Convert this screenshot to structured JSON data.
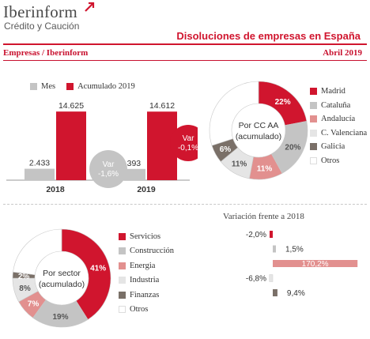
{
  "brand": {
    "name": "Iberinform",
    "tagline": "Crédito y Caución"
  },
  "header": {
    "title": "Disoluciones de empresas en España",
    "section": "Empresas / Iberinform",
    "period": "Abril 2019"
  },
  "colors": {
    "red": "#d0152e",
    "grey": "#c4c4c4",
    "darkgrey": "#7a7068",
    "pink": "#e2908f",
    "lightgrey": "#e5e5e5",
    "white": "#ffffff"
  },
  "chart_data": [
    {
      "type": "bar",
      "categories": [
        "2018",
        "2019"
      ],
      "series": [
        {
          "name": "Mes",
          "values": [
            2433,
            2393
          ],
          "labels": [
            "2.433",
            "2.393"
          ],
          "color": "#c4c4c4"
        },
        {
          "name": "Acumulado 2019",
          "values": [
            14625,
            14612
          ],
          "labels": [
            "14.625",
            "14.612"
          ],
          "color": "#d0152e"
        }
      ],
      "annotations": [
        {
          "text": [
            "Var",
            "-1,6%"
          ],
          "refers_to": "Mes",
          "color": "#c4c4c4"
        },
        {
          "text": [
            "Var",
            "-0,1%"
          ],
          "refers_to": "Acumulado 2019",
          "color": "#d0152e"
        }
      ],
      "ylim": [
        0,
        16000
      ]
    },
    {
      "type": "pie",
      "center_label": [
        "Por CC AA",
        "(acumulado)"
      ],
      "slices": [
        {
          "name": "Madrid",
          "value": 22,
          "label": "22%",
          "color": "#d0152e"
        },
        {
          "name": "Cataluña",
          "value": 20,
          "label": "20%",
          "color": "#c4c4c4"
        },
        {
          "name": "Andalucía",
          "value": 11,
          "label": "11%",
          "color": "#e2908f"
        },
        {
          "name": "C. Valenciana",
          "value": 11,
          "label": "11%",
          "color": "#e5e5e5"
        },
        {
          "name": "Galicia",
          "value": 6,
          "label": "6%",
          "color": "#7a7068"
        },
        {
          "name": "Otros",
          "value": 30,
          "label": "",
          "color": "#ffffff"
        }
      ]
    },
    {
      "type": "pie",
      "center_label": [
        "Por sector",
        "(acumulado)"
      ],
      "slices": [
        {
          "name": "Servicios",
          "value": 41,
          "label": "41%",
          "color": "#d0152e"
        },
        {
          "name": "Construcción",
          "value": 19,
          "label": "19%",
          "color": "#c4c4c4"
        },
        {
          "name": "Energia",
          "value": 7,
          "label": "7%",
          "color": "#e2908f"
        },
        {
          "name": "Industria",
          "value": 8,
          "label": "8%",
          "color": "#e5e5e5"
        },
        {
          "name": "Finanzas",
          "value": 2,
          "label": "2%",
          "color": "#7a7068"
        },
        {
          "name": "Otros",
          "value": 23,
          "label": "",
          "color": "#ffffff"
        }
      ]
    },
    {
      "type": "bar",
      "orientation": "horizontal",
      "title": "Variación frente a 2018",
      "categories": [
        "Servicios",
        "Construcción",
        "Energia",
        "Industria",
        "Finanzas",
        "Otros"
      ],
      "values": [
        -2.0,
        1.5,
        170.2,
        -6.8,
        9.4,
        null
      ],
      "labels": [
        "-2,0%",
        "1,5%",
        "170,2%",
        "-6,8%",
        "9,4%",
        ""
      ],
      "colors": [
        "#d0152e",
        "#c4c4c4",
        "#e2908f",
        "#e5e5e5",
        "#7a7068",
        "#ffffff"
      ]
    }
  ]
}
